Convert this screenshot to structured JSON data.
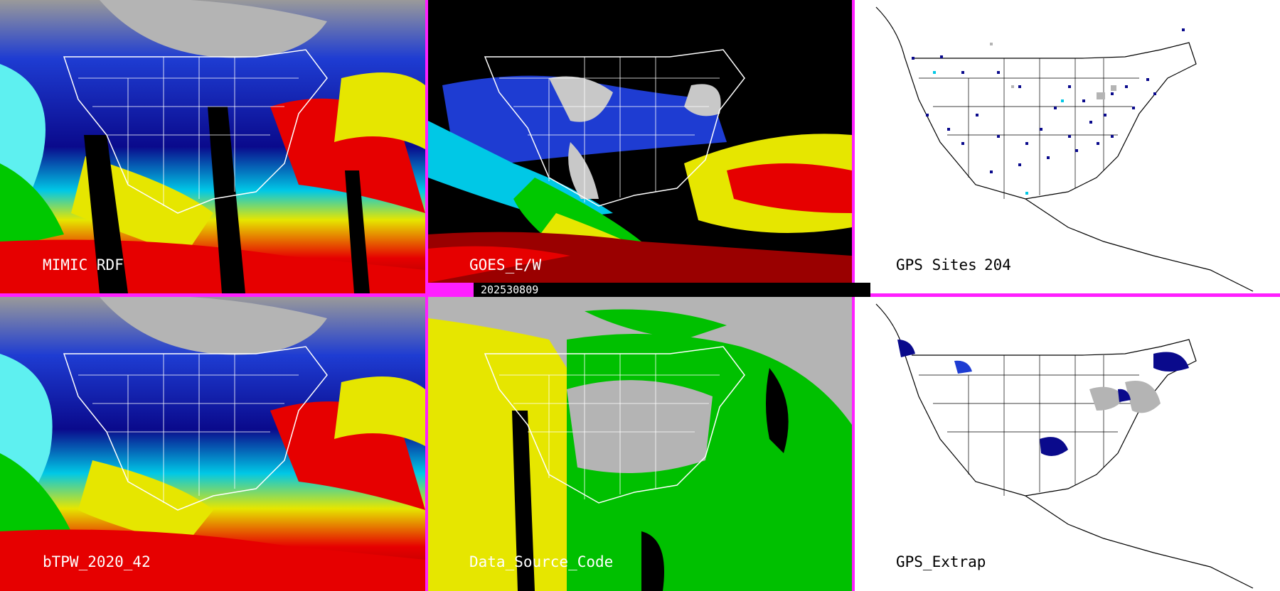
{
  "panels": [
    {
      "id": "mimic",
      "label": "MIMIC RDF",
      "style": "tpw"
    },
    {
      "id": "goes",
      "label": "GOES_E/W",
      "style": "goes"
    },
    {
      "id": "gps",
      "label": "GPS Sites",
      "count": "204",
      "style": "gps"
    },
    {
      "id": "btpw",
      "label": "bTPW_2020_42",
      "style": "tpw"
    },
    {
      "id": "dsc",
      "label": "Data_Source_Code",
      "style": "dsc"
    },
    {
      "id": "gpsx",
      "label": "GPS_Extrap",
      "style": "gpsx"
    }
  ],
  "timestamp": "202530809",
  "colors": {
    "frame": "#ff20ff",
    "tpw_scale": [
      "#0a0a8c",
      "#1e3cd2",
      "#00c8e6",
      "#5ef0f0",
      "#00c800",
      "#7ce000",
      "#e6e600",
      "#f0a000",
      "#e60000",
      "#9a0000",
      "#a000a0"
    ],
    "dsc_scale": [
      "#b4b4b4",
      "#e6e600",
      "#00c000",
      "#000000"
    ]
  }
}
